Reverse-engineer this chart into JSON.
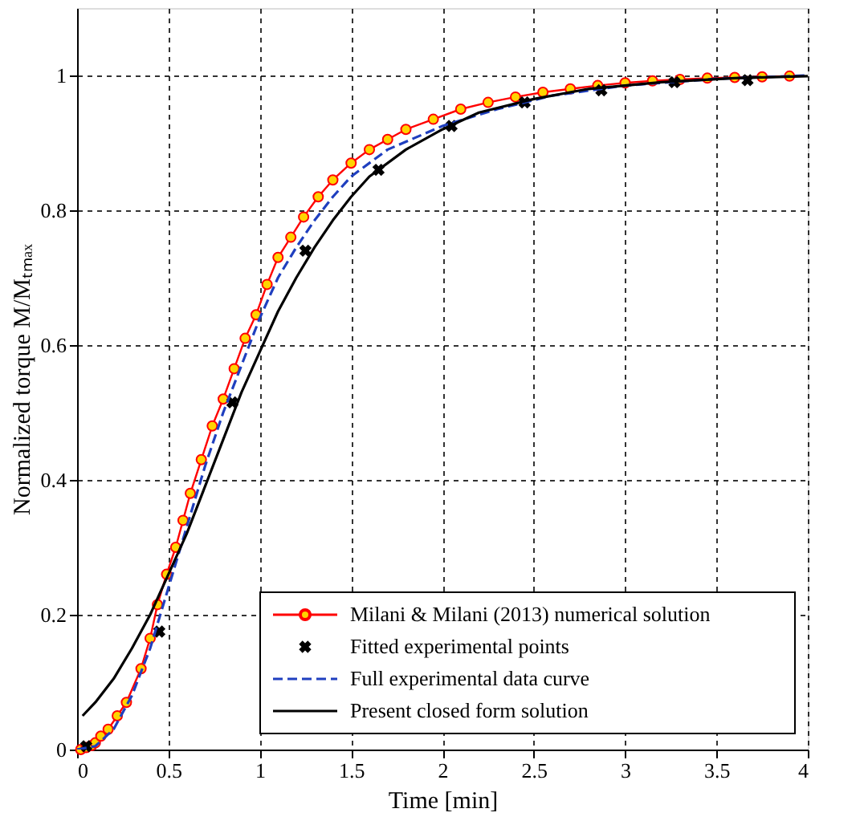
{
  "chart_data": {
    "type": "line",
    "xlabel": "Time [min]",
    "ylabel": "Normalized torque M/Mₜₘₐₓ",
    "xlim": [
      0,
      4
    ],
    "ylim": [
      0,
      1.1
    ],
    "xticks": [
      0,
      0.5,
      1,
      1.5,
      2,
      2.5,
      3,
      3.5,
      4
    ],
    "yticks": [
      0,
      0.2,
      0.4,
      0.6,
      0.8,
      1
    ],
    "grid": true,
    "legend": "bottom right",
    "series": [
      {
        "name": "Milani & Milani (2013) numerical solution",
        "color": "#ff0000",
        "marker": "circle",
        "line_style": "solid",
        "x": [
          0.02,
          0.05,
          0.08,
          0.1,
          0.13,
          0.17,
          0.22,
          0.27,
          0.35,
          0.4,
          0.44,
          0.49,
          0.54,
          0.58,
          0.62,
          0.68,
          0.74,
          0.8,
          0.86,
          0.92,
          0.98,
          1.04,
          1.1,
          1.17,
          1.24,
          1.32,
          1.4,
          1.5,
          1.6,
          1.7,
          1.8,
          1.95,
          2.1,
          2.25,
          2.4,
          2.55,
          2.7,
          2.85,
          3.0,
          3.15,
          3.3,
          3.45,
          3.6,
          3.75,
          3.9
        ],
        "values": [
          0.0,
          0.003,
          0.006,
          0.01,
          0.02,
          0.03,
          0.05,
          0.07,
          0.12,
          0.165,
          0.215,
          0.26,
          0.3,
          0.34,
          0.38,
          0.43,
          0.48,
          0.52,
          0.565,
          0.61,
          0.645,
          0.69,
          0.73,
          0.76,
          0.79,
          0.82,
          0.845,
          0.87,
          0.89,
          0.905,
          0.92,
          0.935,
          0.95,
          0.96,
          0.968,
          0.975,
          0.98,
          0.985,
          0.989,
          0.992,
          0.994,
          0.996,
          0.997,
          0.998,
          0.999
        ]
      },
      {
        "name": "Fitted experimental points",
        "type": "scatter",
        "color": "#000000",
        "marker": "cross",
        "x": [
          0.05,
          0.45,
          0.85,
          1.25,
          1.65,
          2.05,
          2.45,
          2.87,
          3.27,
          3.67
        ],
        "values": [
          0.005,
          0.175,
          0.515,
          0.74,
          0.86,
          0.925,
          0.96,
          0.978,
          0.99,
          0.993
        ]
      },
      {
        "name": "Full experimental data curve",
        "color": "#1f3fbf",
        "marker": "none",
        "line_style": "dashed",
        "x": [
          0,
          0.1,
          0.2,
          0.3,
          0.4,
          0.5,
          0.6,
          0.7,
          0.8,
          0.9,
          1.0,
          1.1,
          1.2,
          1.3,
          1.4,
          1.5,
          1.7,
          2.0,
          2.3,
          2.6,
          3.0,
          3.5,
          4.0
        ],
        "values": [
          0,
          0.005,
          0.03,
          0.08,
          0.15,
          0.24,
          0.33,
          0.42,
          0.5,
          0.57,
          0.64,
          0.7,
          0.745,
          0.785,
          0.82,
          0.85,
          0.89,
          0.925,
          0.95,
          0.97,
          0.985,
          0.995,
          1.0
        ]
      },
      {
        "name": "Present closed form solution",
        "color": "#000000",
        "marker": "none",
        "line_style": "solid",
        "x": [
          0.03,
          0.1,
          0.2,
          0.3,
          0.4,
          0.5,
          0.6,
          0.7,
          0.8,
          0.9,
          1.0,
          1.1,
          1.2,
          1.3,
          1.4,
          1.5,
          1.6,
          1.8,
          2.0,
          2.2,
          2.5,
          2.8,
          3.2,
          3.6,
          4.0
        ],
        "values": [
          0.05,
          0.07,
          0.105,
          0.15,
          0.2,
          0.26,
          0.32,
          0.39,
          0.46,
          0.53,
          0.59,
          0.65,
          0.7,
          0.745,
          0.785,
          0.82,
          0.85,
          0.89,
          0.92,
          0.945,
          0.965,
          0.98,
          0.99,
          0.996,
          0.999
        ]
      }
    ]
  }
}
